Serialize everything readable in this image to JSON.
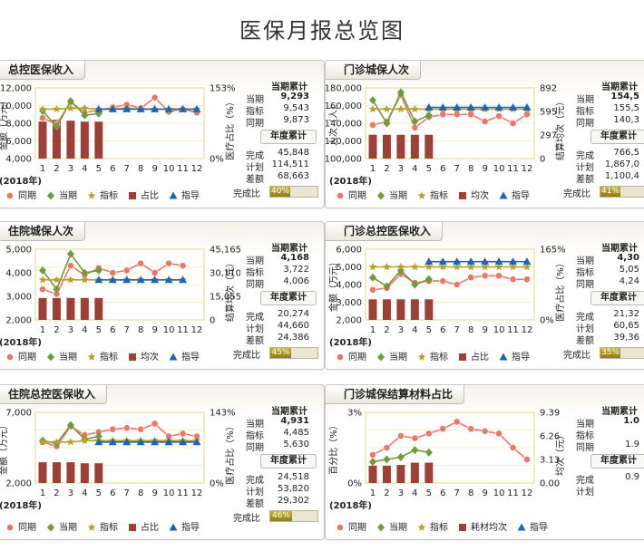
{
  "page_title": "医保月报总览图",
  "legend_shapes": {
    "同期": "circle",
    "当期": "diamond",
    "指标": "star",
    "占比": "square",
    "均次": "square",
    "耗材均次": "square",
    "指导": "triangle"
  },
  "colors": {
    "同期": "#e8786a",
    "当期": "#6f9a3e",
    "指标": "#b8a12c",
    "bar": "#9b4137",
    "指导": "#1e66b3",
    "axis_line": "#e3d98a"
  },
  "chart_data": [
    {
      "type": "line",
      "title": "总控医保收入",
      "xlabel": "2018年",
      "ylabel": "金额（万元）",
      "y2label": "医疗占比（%）",
      "categories": [
        "1",
        "2",
        "3",
        "4",
        "5",
        "6",
        "7",
        "8",
        "9",
        "10",
        "11",
        "12"
      ],
      "yticks": [
        "12,000",
        "10,000",
        "8,000",
        "6,000",
        "4,000"
      ],
      "ylim": [
        4000,
        12000
      ],
      "y2ticks": [
        "153%",
        "0%"
      ],
      "y2lim": [
        0,
        153
      ],
      "series": [
        {
          "name": "同期",
          "kind": "line",
          "values": [
            8600,
            7900,
            10400,
            9200,
            9500,
            9800,
            10100,
            9700,
            10900,
            9300,
            9600,
            9200
          ]
        },
        {
          "name": "当期",
          "kind": "line",
          "values": [
            9400,
            7600,
            10500,
            8900,
            9100,
            null,
            null,
            null,
            null,
            null,
            null,
            null
          ]
        },
        {
          "name": "指标",
          "kind": "line",
          "values": [
            9600,
            9600,
            9700,
            9700,
            9600,
            9600,
            9700,
            9600,
            9600,
            9600,
            9600,
            9600
          ]
        },
        {
          "name": "指导",
          "kind": "line",
          "values": [
            null,
            null,
            null,
            null,
            9600,
            9600,
            9600,
            9600,
            9600,
            9600,
            9600,
            9600
          ]
        },
        {
          "name": "占比",
          "kind": "bar",
          "axis": "y2",
          "values": [
            80,
            84,
            82,
            80,
            80,
            null,
            null,
            null,
            null,
            null,
            null,
            null
          ]
        }
      ],
      "legend": [
        "同期",
        "当期",
        "指标",
        "占比",
        "指导"
      ],
      "summary": {
        "hdr": "当期累计",
        "rows": [
          [
            "当期",
            "9,293"
          ],
          [
            "指标",
            "9,543"
          ],
          [
            "同期",
            "9,873"
          ]
        ],
        "hdr2": "年度累计",
        "rows2": [
          [
            "完成",
            "45,848"
          ],
          [
            "计划",
            "114,511"
          ],
          [
            "差额",
            "68,663"
          ]
        ],
        "done_label": "完成比",
        "done_pct": "40%",
        "done_frac": 0.4
      }
    },
    {
      "type": "line",
      "title": "门诊城保人次",
      "xlabel": "2018年",
      "ylabel": "人次（人）",
      "y2label": "结算均次（元）",
      "categories": [
        "1",
        "2",
        "3",
        "4",
        "5",
        "6",
        "7",
        "8",
        "9",
        "10",
        "11",
        "12"
      ],
      "yticks": [
        "180,000",
        "160,000",
        "140,000",
        "120,000",
        "100,000"
      ],
      "ylim": [
        100000,
        180000
      ],
      "y2ticks": [
        "892",
        "595",
        "297",
        "0"
      ],
      "y2lim": [
        0,
        892
      ],
      "series": [
        {
          "name": "同期",
          "kind": "line",
          "values": [
            138000,
            142000,
            172000,
            135000,
            147000,
            150000,
            150000,
            150000,
            142000,
            148000,
            140000,
            150000
          ]
        },
        {
          "name": "当期",
          "kind": "line",
          "values": [
            166000,
            140000,
            175000,
            142000,
            149000,
            null,
            null,
            null,
            null,
            null,
            null,
            null
          ]
        },
        {
          "name": "指标",
          "kind": "line",
          "values": [
            156000,
            156000,
            156000,
            156000,
            156000,
            156000,
            156000,
            156000,
            156000,
            156000,
            156000,
            156000
          ]
        },
        {
          "name": "指导",
          "kind": "line",
          "values": [
            null,
            null,
            null,
            null,
            158000,
            158000,
            158000,
            158000,
            158000,
            158000,
            158000,
            158000
          ]
        },
        {
          "name": "均次",
          "kind": "bar",
          "axis": "y2",
          "values": [
            300,
            300,
            300,
            300,
            300,
            null,
            null,
            null,
            null,
            null,
            null,
            null
          ]
        }
      ],
      "legend": [
        "同期",
        "当期",
        "指标",
        "均次",
        "指导"
      ],
      "summary": {
        "hdr": "当期累计",
        "rows": [
          [
            "当期",
            "154,5"
          ],
          [
            "指标",
            "155,5"
          ],
          [
            "同期",
            "140,3"
          ]
        ],
        "hdr2": "年度累计",
        "rows2": [
          [
            "完成",
            "766,5"
          ],
          [
            "计划",
            "1,867,0"
          ],
          [
            "差额",
            "1,100,4"
          ]
        ],
        "done_label": "完成比",
        "done_pct": "41%",
        "done_frac": 0.41
      }
    },
    {
      "type": "line",
      "title": "住院城保人次",
      "xlabel": "2018年",
      "ylabel": "",
      "y2label": "结算均次（元）",
      "categories": [
        "1",
        "2",
        "3",
        "4",
        "5",
        "6",
        "7",
        "8",
        "9",
        "10",
        "11",
        "12"
      ],
      "yticks": [
        "5,000",
        "4,000",
        "3,000",
        "2,000"
      ],
      "ylim": [
        2000,
        5000
      ],
      "y2ticks": [
        "45,165",
        "30,110",
        "15,055",
        "0"
      ],
      "y2lim": [
        0,
        45165
      ],
      "series": [
        {
          "name": "同期",
          "kind": "line",
          "values": [
            3300,
            3100,
            4300,
            3900,
            4200,
            4000,
            4100,
            4400,
            4000,
            4400,
            4300,
            null
          ]
        },
        {
          "name": "当期",
          "kind": "line",
          "values": [
            4100,
            3300,
            4800,
            4000,
            4100,
            null,
            null,
            null,
            null,
            null,
            null,
            null
          ]
        },
        {
          "name": "指标",
          "kind": "line",
          "values": [
            3700,
            3700,
            3700,
            3700,
            3700,
            3700,
            3700,
            3700,
            3700,
            3700,
            3700,
            null
          ]
        },
        {
          "name": "指导",
          "kind": "line",
          "values": [
            null,
            null,
            null,
            null,
            3700,
            3700,
            3700,
            3700,
            3700,
            3700,
            3700,
            null
          ]
        },
        {
          "name": "均次",
          "kind": "bar",
          "axis": "y2",
          "values": [
            14000,
            14000,
            14000,
            14000,
            14000,
            null,
            null,
            null,
            null,
            null,
            null,
            null
          ]
        }
      ],
      "legend": [
        "同期",
        "当期",
        "指标",
        "均次",
        "指导"
      ],
      "summary": {
        "hdr": "当期累计",
        "rows": [
          [
            "当期",
            "4,168"
          ],
          [
            "指标",
            "3,722"
          ],
          [
            "同期",
            "4,006"
          ]
        ],
        "hdr2": "年度累计",
        "rows2": [
          [
            "完成",
            "20,274"
          ],
          [
            "计划",
            "44,660"
          ],
          [
            "差额",
            "24,386"
          ]
        ],
        "done_label": "完成比",
        "done_pct": "45%",
        "done_frac": 0.45
      }
    },
    {
      "type": "line",
      "title": "门诊总控医保收入",
      "xlabel": "2018年",
      "ylabel": "金额（万元）",
      "y2label": "医疗占比（%）",
      "categories": [
        "1",
        "2",
        "3",
        "4",
        "5",
        "6",
        "7",
        "8",
        "9",
        "10",
        "11",
        "12"
      ],
      "yticks": [
        "6,000",
        "5,000",
        "4,000",
        "3,000",
        "2,000"
      ],
      "ylim": [
        2000,
        6000
      ],
      "y2ticks": [
        "165%",
        "0%"
      ],
      "y2lim": [
        0,
        165
      ],
      "series": [
        {
          "name": "同期",
          "kind": "line",
          "values": [
            3700,
            3800,
            4600,
            4100,
            4200,
            4200,
            4000,
            4400,
            4500,
            4500,
            4300,
            4300
          ]
        },
        {
          "name": "当期",
          "kind": "line",
          "values": [
            4400,
            3900,
            4800,
            4000,
            4300,
            null,
            null,
            null,
            null,
            null,
            null,
            null
          ]
        },
        {
          "name": "指标",
          "kind": "line",
          "values": [
            5000,
            5000,
            5000,
            5000,
            5000,
            5000,
            5000,
            5000,
            5000,
            5000,
            5000,
            5000
          ]
        },
        {
          "name": "指导",
          "kind": "line",
          "values": [
            null,
            null,
            null,
            null,
            5300,
            5300,
            5300,
            5300,
            5300,
            5300,
            5300,
            5300
          ]
        },
        {
          "name": "占比",
          "kind": "bar",
          "axis": "y2",
          "values": [
            48,
            48,
            48,
            48,
            48,
            null,
            null,
            null,
            null,
            null,
            null,
            null
          ]
        }
      ],
      "legend": [
        "同期",
        "当期",
        "指标",
        "占比",
        "指导"
      ],
      "summary": {
        "hdr": "当期累计",
        "rows": [
          [
            "当期",
            "4,30"
          ],
          [
            "指标",
            "5,05"
          ],
          [
            "同期",
            "4,24"
          ]
        ],
        "hdr2": "年度累计",
        "rows2": [
          [
            "完成",
            "21,32"
          ],
          [
            "计划",
            "60,65"
          ],
          [
            "差额",
            "39,36"
          ]
        ],
        "done_label": "完成比",
        "done_pct": "35%",
        "done_frac": 0.35
      }
    },
    {
      "type": "line",
      "title": "住院总控医保收入",
      "xlabel": "2018年",
      "ylabel": "金额（万元）",
      "y2label": "医疗占比（%）",
      "categories": [
        "1",
        "2",
        "3",
        "4",
        "5",
        "6",
        "7",
        "8",
        "9",
        "10",
        "11",
        "12"
      ],
      "yticks": [
        "7,000",
        "2,000"
      ],
      "ylim": [
        2000,
        7000
      ],
      "y2ticks": [
        "143%",
        "0%"
      ],
      "y2lim": [
        0,
        143
      ],
      "series": [
        {
          "name": "同期",
          "kind": "line",
          "values": [
            4900,
            4600,
            6000,
            5400,
            5600,
            5800,
            5900,
            5800,
            6200,
            5300,
            5500,
            5300
          ]
        },
        {
          "name": "当期",
          "kind": "line",
          "values": [
            5000,
            4800,
            6100,
            5100,
            5300,
            null,
            null,
            null,
            null,
            null,
            null,
            null
          ]
        },
        {
          "name": "指标",
          "kind": "line",
          "values": [
            4900,
            4900,
            4900,
            5000,
            5000,
            5000,
            5000,
            5000,
            5000,
            5000,
            5000,
            5000
          ]
        },
        {
          "name": "指导",
          "kind": "line",
          "values": [
            null,
            null,
            null,
            null,
            4900,
            4900,
            4900,
            4900,
            4900,
            4900,
            4900,
            4900
          ]
        },
        {
          "name": "占比",
          "kind": "bar",
          "axis": "y2",
          "values": [
            42,
            42,
            42,
            40,
            40,
            null,
            null,
            null,
            null,
            null,
            null,
            null
          ]
        }
      ],
      "legend": [
        "同期",
        "当期",
        "指标",
        "占比",
        "指导"
      ],
      "summary": {
        "hdr": "当期累计",
        "rows": [
          [
            "当期",
            "4,931"
          ],
          [
            "指标",
            "4,485"
          ],
          [
            "同期",
            "5,630"
          ]
        ],
        "hdr2": "年度累计",
        "rows2": [
          [
            "完成",
            "24,518"
          ],
          [
            "计划",
            "53,820"
          ],
          [
            "差额",
            "29,302"
          ]
        ],
        "done_label": "完成比",
        "done_pct": "46%",
        "done_frac": 0.46
      }
    },
    {
      "type": "line",
      "title": "门诊城保结算材料占比",
      "xlabel": "2018年",
      "ylabel": "百分比（%）",
      "y2label": "均次（元）",
      "categories": [
        "1",
        "2",
        "3",
        "4",
        "5",
        "6",
        "7",
        "8",
        "9",
        "10",
        "11",
        "12"
      ],
      "yticks": [
        "3%",
        "0%"
      ],
      "ylim": [
        0,
        3
      ],
      "y2ticks": [
        "9.39",
        "6.26",
        "3.13",
        "0.00"
      ],
      "y2lim": [
        0,
        9.39
      ],
      "series": [
        {
          "name": "同期",
          "kind": "line",
          "values": [
            1.2,
            1.5,
            2.0,
            1.9,
            2.1,
            2.3,
            2.6,
            2.3,
            2.2,
            2.1,
            1.5,
            1.0
          ]
        },
        {
          "name": "当期",
          "kind": "line",
          "values": [
            0.9,
            1.0,
            1.1,
            1.4,
            1.3,
            null,
            null,
            null,
            null,
            null,
            null,
            null
          ]
        },
        {
          "name": "耗材均次",
          "kind": "bar",
          "axis": "y2",
          "values": [
            2.3,
            2.3,
            2.4,
            2.7,
            2.7,
            null,
            null,
            null,
            null,
            null,
            null,
            null
          ]
        }
      ],
      "legend": [
        "同期",
        "当期",
        "指标",
        "耗材均次",
        "指导"
      ],
      "summary": {
        "hdr": "当期累计",
        "rows": [
          [
            "当期",
            "1.0"
          ],
          [
            "指标",
            ""
          ],
          [
            "同期",
            "1.9"
          ]
        ],
        "hdr2": "年度累计",
        "rows2": [
          [
            "完成",
            "0.9"
          ],
          [
            "计划",
            ""
          ]
        ],
        "done_label": "",
        "done_pct": "",
        "done_frac": null
      }
    }
  ]
}
